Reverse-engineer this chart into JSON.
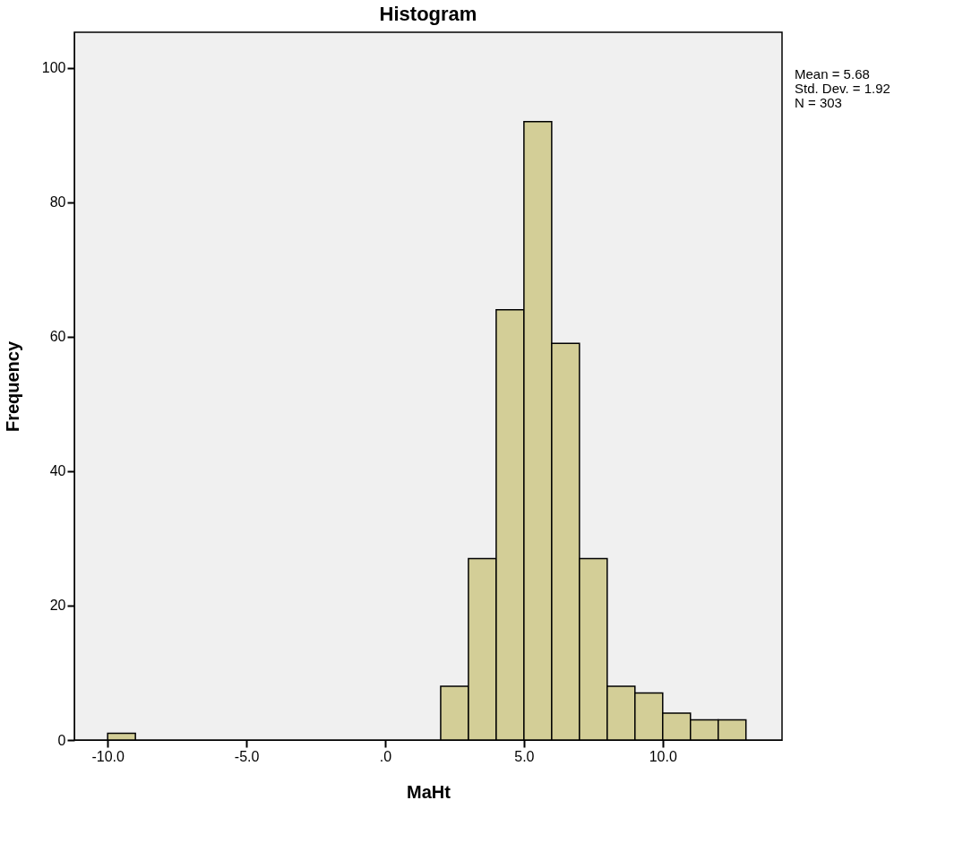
{
  "chart_data": {
    "type": "histogram",
    "title": "Histogram",
    "xlabel": "MaHt",
    "ylabel": "Frequency",
    "bins": [
      -10,
      -9,
      -8,
      -7,
      -6,
      -5,
      -4,
      -3,
      -2,
      -1,
      0,
      1,
      2,
      3,
      4,
      5,
      6,
      7,
      8,
      9,
      10,
      11,
      12,
      13
    ],
    "values": [
      1,
      0,
      0,
      0,
      0,
      0,
      0,
      0,
      0,
      0,
      0,
      0,
      8,
      27,
      64,
      92,
      59,
      27,
      8,
      7,
      4,
      3,
      3
    ],
    "color": "#d3ce97",
    "xlim": [
      -11.2,
      14.3
    ],
    "ylim": [
      0,
      105.3
    ],
    "xticks": [
      {
        "value": -10,
        "label": "-10.0"
      },
      {
        "value": -5,
        "label": "-5.0"
      },
      {
        "value": 0,
        "label": ".0"
      },
      {
        "value": 5,
        "label": "5.0"
      },
      {
        "value": 10,
        "label": "10.0"
      }
    ],
    "yticks": [
      0,
      20,
      40,
      60,
      80,
      100
    ],
    "annotations": [
      "Mean = 5.68",
      "Std. Dev. = 1.92",
      "N = 303"
    ]
  }
}
